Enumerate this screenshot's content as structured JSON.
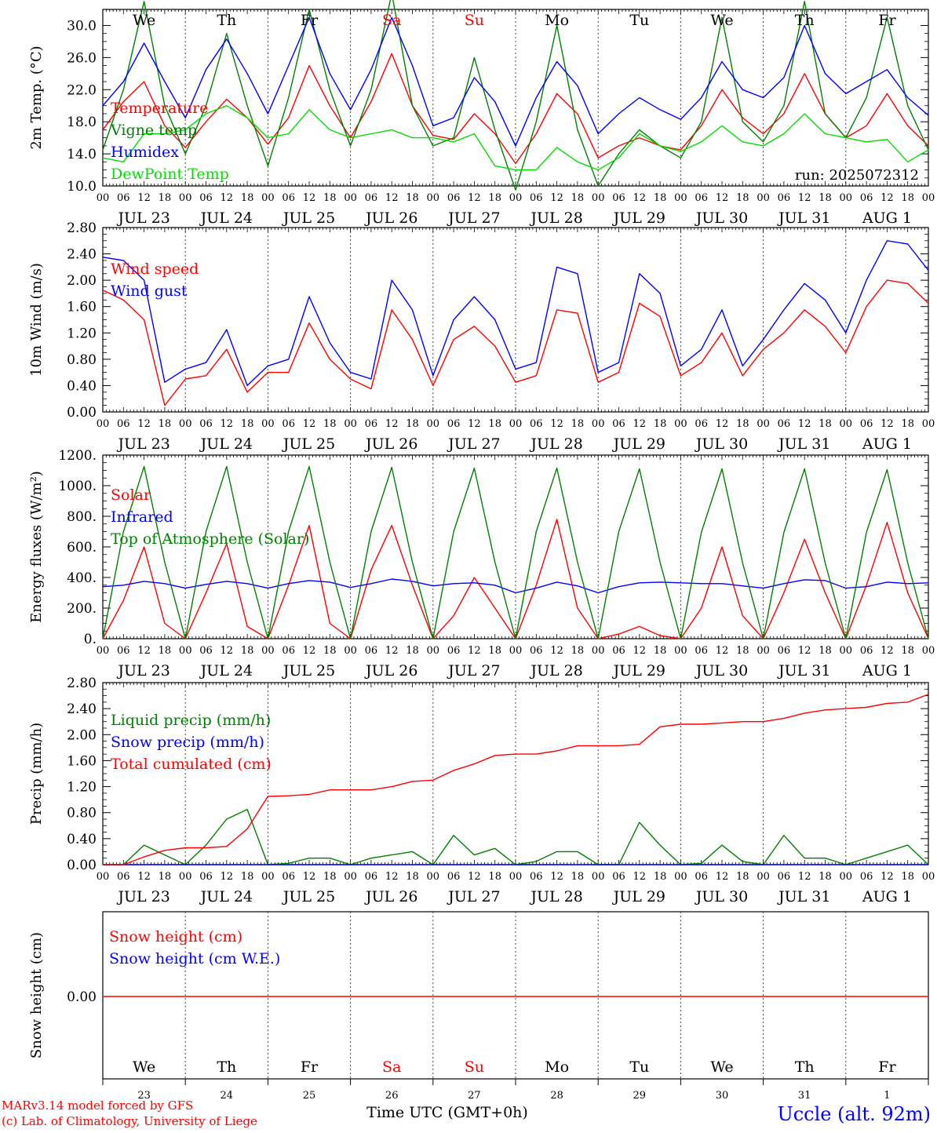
{
  "colors": {
    "temperature": "#ff0000",
    "vigne": "#008000",
    "humidex": "#0000ff",
    "dewpoint": "#00dd00",
    "axis": "#000000",
    "footer_left": "#ff0000",
    "footer_right": "#0000ff"
  },
  "days": {
    "weekday_labels": [
      "We",
      "Th",
      "Fr",
      "Sa",
      "Su",
      "Mo",
      "Tu",
      "We",
      "Th",
      "Fr"
    ],
    "weekend_flags": [
      false,
      false,
      false,
      true,
      true,
      false,
      false,
      false,
      false,
      false
    ],
    "date_labels": [
      "JUL 23",
      "JUL 24",
      "JUL 25",
      "JUL 26",
      "JUL 27",
      "JUL 28",
      "JUL 29",
      "JUL 30",
      "JUL 31",
      "AUG 1"
    ],
    "day_numbers": [
      "23",
      "24",
      "25",
      "26",
      "27",
      "28",
      "29",
      "30",
      "31",
      "1"
    ],
    "hour_labels": [
      "00",
      "06",
      "12",
      "18"
    ],
    "final_hour_label": "00"
  },
  "run_label": "run: 2025072312",
  "footer": {
    "model_line": "MARv3.14 model forced by GFS",
    "lab_line": "(c) Lab. of Climatology, University of Liege",
    "time_axis_label": "Time UTC (GMT+0h)",
    "station": "Uccle (alt. 92m)"
  },
  "chart_data": [
    {
      "id": "temperature",
      "type": "line",
      "ylabel": "2m Temp. (°C)",
      "ylim": [
        10.0,
        32.0
      ],
      "yticks": [
        "10.0",
        "14.0",
        "18.0",
        "22.0",
        "26.0",
        "30.0"
      ],
      "yticks_values": [
        10,
        14,
        18,
        22,
        26,
        30
      ],
      "x_hours": [
        0,
        6,
        12,
        18,
        24,
        30,
        36,
        42,
        48,
        54,
        60,
        66,
        72,
        78,
        84,
        90,
        96,
        102,
        108,
        114,
        120,
        126,
        132,
        138,
        144,
        150,
        156,
        162,
        168,
        174,
        180,
        186,
        192,
        198,
        204,
        210,
        216,
        222,
        228,
        234,
        240
      ],
      "series": [
        {
          "name": "Temperature",
          "color_key": "temperature",
          "values": [
            17.0,
            20.5,
            23.0,
            17.5,
            14.8,
            18.0,
            20.8,
            18.5,
            15.2,
            18.5,
            25.0,
            20.0,
            16.0,
            20.5,
            26.5,
            20.0,
            16.3,
            15.8,
            19.0,
            16.5,
            12.8,
            16.5,
            21.5,
            19.0,
            13.5,
            15.0,
            16.0,
            15.0,
            14.5,
            17.5,
            22.0,
            18.5,
            16.5,
            19.0,
            24.0,
            19.0,
            16.0,
            17.5,
            21.5,
            17.5,
            15.0
          ]
        },
        {
          "name": "Vigne temp",
          "color_key": "vigne",
          "values": [
            14.5,
            22.0,
            33.0,
            20.0,
            14.0,
            20.0,
            29.0,
            20.0,
            12.5,
            21.0,
            32.0,
            22.0,
            15.0,
            22.0,
            34.0,
            20.0,
            15.0,
            16.0,
            26.0,
            17.0,
            9.5,
            18.0,
            30.0,
            17.0,
            10.0,
            14.0,
            17.0,
            15.0,
            13.5,
            18.0,
            31.0,
            18.0,
            15.5,
            20.0,
            33.0,
            19.0,
            16.0,
            21.0,
            31.0,
            20.0,
            14.5
          ]
        },
        {
          "name": "Humidex",
          "color_key": "humidex",
          "values": [
            20.0,
            23.0,
            27.8,
            23.0,
            18.5,
            24.5,
            28.3,
            24.0,
            19.0,
            25.0,
            31.0,
            24.0,
            19.5,
            24.5,
            31.0,
            25.0,
            17.5,
            18.5,
            23.5,
            20.5,
            15.0,
            21.0,
            25.5,
            22.5,
            16.5,
            19.0,
            21.0,
            19.5,
            18.3,
            21.0,
            25.5,
            22.0,
            21.0,
            23.5,
            30.0,
            24.0,
            21.5,
            23.0,
            24.5,
            21.0,
            18.8
          ]
        },
        {
          "name": "DewPoint Temp",
          "color_key": "dewpoint",
          "values": [
            13.5,
            13.0,
            16.5,
            16.5,
            17.0,
            19.0,
            20.0,
            18.5,
            16.0,
            16.5,
            19.5,
            17.0,
            16.0,
            16.5,
            17.0,
            16.0,
            16.0,
            15.5,
            16.5,
            12.5,
            12.0,
            12.0,
            14.8,
            13.0,
            12.0,
            13.5,
            16.5,
            15.0,
            14.3,
            15.5,
            17.5,
            15.5,
            15.0,
            16.5,
            19.0,
            16.5,
            16.0,
            15.5,
            15.8,
            13.0,
            14.5
          ]
        }
      ]
    },
    {
      "id": "wind",
      "type": "line",
      "ylabel": "10m Wind (m/s)",
      "ylim": [
        0.0,
        2.8
      ],
      "yticks": [
        "0.00",
        "0.40",
        "0.80",
        "1.20",
        "1.60",
        "2.00",
        "2.40",
        "2.80"
      ],
      "yticks_values": [
        0,
        0.4,
        0.8,
        1.2,
        1.6,
        2.0,
        2.4,
        2.8
      ],
      "x_hours": [
        0,
        6,
        12,
        18,
        24,
        30,
        36,
        42,
        48,
        54,
        60,
        66,
        72,
        78,
        84,
        90,
        96,
        102,
        108,
        114,
        120,
        126,
        132,
        138,
        144,
        150,
        156,
        162,
        168,
        174,
        180,
        186,
        192,
        198,
        204,
        210,
        216,
        222,
        228,
        234,
        240
      ],
      "series": [
        {
          "name": "Wind speed",
          "color_key": "temperature",
          "values": [
            1.85,
            1.7,
            1.4,
            0.1,
            0.5,
            0.55,
            0.95,
            0.3,
            0.6,
            0.6,
            1.35,
            0.8,
            0.5,
            0.35,
            1.55,
            1.1,
            0.4,
            1.1,
            1.3,
            1.0,
            0.45,
            0.55,
            1.55,
            1.5,
            0.45,
            0.6,
            1.65,
            1.45,
            0.55,
            0.75,
            1.2,
            0.55,
            0.95,
            1.2,
            1.55,
            1.3,
            0.9,
            1.6,
            2.0,
            1.95,
            1.65
          ]
        },
        {
          "name": "Wind gust",
          "color_key": "humidex",
          "values": [
            2.35,
            2.3,
            2.0,
            0.45,
            0.65,
            0.75,
            1.25,
            0.4,
            0.7,
            0.8,
            1.75,
            1.05,
            0.6,
            0.5,
            2.0,
            1.55,
            0.55,
            1.4,
            1.75,
            1.4,
            0.65,
            0.75,
            2.2,
            2.1,
            0.6,
            0.75,
            2.1,
            1.8,
            0.7,
            0.95,
            1.55,
            0.7,
            1.1,
            1.55,
            1.95,
            1.7,
            1.2,
            2.0,
            2.6,
            2.55,
            2.15
          ]
        }
      ]
    },
    {
      "id": "energy",
      "type": "line",
      "ylabel": "Energy fluxes (W/m²)",
      "ylim": [
        0,
        1200
      ],
      "yticks": [
        "0.",
        "200.",
        "400.",
        "600.",
        "800.",
        "1000.",
        "1200."
      ],
      "yticks_values": [
        0,
        200,
        400,
        600,
        800,
        1000,
        1200
      ],
      "x_hours": [
        0,
        6,
        12,
        18,
        24,
        30,
        36,
        42,
        48,
        54,
        60,
        66,
        72,
        78,
        84,
        90,
        96,
        102,
        108,
        114,
        120,
        126,
        132,
        138,
        144,
        150,
        156,
        162,
        168,
        174,
        180,
        186,
        192,
        198,
        204,
        210,
        216,
        222,
        228,
        234,
        240
      ],
      "series": [
        {
          "name": "Solar",
          "color_key": "temperature",
          "values": [
            0,
            250,
            600,
            100,
            0,
            300,
            620,
            80,
            0,
            350,
            740,
            100,
            0,
            450,
            740,
            350,
            0,
            150,
            400,
            200,
            0,
            350,
            780,
            200,
            0,
            30,
            80,
            20,
            0,
            200,
            600,
            150,
            0,
            300,
            650,
            300,
            0,
            350,
            760,
            300,
            0
          ]
        },
        {
          "name": "Infrared",
          "color_key": "humidex",
          "values": [
            340,
            350,
            375,
            360,
            330,
            355,
            375,
            360,
            330,
            360,
            380,
            370,
            335,
            360,
            390,
            375,
            345,
            360,
            365,
            350,
            300,
            330,
            370,
            345,
            300,
            340,
            365,
            370,
            365,
            360,
            360,
            345,
            330,
            360,
            385,
            380,
            330,
            340,
            370,
            360,
            365
          ]
        },
        {
          "name": "Top of Atmosphere (Solar)",
          "color_key": "vigne",
          "values": [
            0,
            700,
            1125,
            500,
            0,
            700,
            1125,
            500,
            0,
            700,
            1125,
            500,
            0,
            700,
            1120,
            500,
            0,
            700,
            1115,
            500,
            0,
            700,
            1115,
            500,
            0,
            700,
            1110,
            500,
            0,
            695,
            1110,
            495,
            0,
            695,
            1110,
            495,
            0,
            695,
            1105,
            495,
            0
          ]
        }
      ]
    },
    {
      "id": "precip",
      "type": "line",
      "ylabel": "Precip (mm/h)",
      "ylim": [
        0.0,
        2.8
      ],
      "yticks": [
        "0.00",
        "0.40",
        "0.80",
        "1.20",
        "1.60",
        "2.00",
        "2.40",
        "2.80"
      ],
      "yticks_values": [
        0,
        0.4,
        0.8,
        1.2,
        1.6,
        2.0,
        2.4,
        2.8
      ],
      "x_hours": [
        0,
        6,
        12,
        18,
        24,
        30,
        36,
        42,
        48,
        54,
        60,
        66,
        72,
        78,
        84,
        90,
        96,
        102,
        108,
        114,
        120,
        126,
        132,
        138,
        144,
        150,
        156,
        162,
        168,
        174,
        180,
        186,
        192,
        198,
        204,
        210,
        216,
        222,
        228,
        234,
        240
      ],
      "series": [
        {
          "name": "Liquid precip (mm/h)",
          "color_key": "vigne",
          "values": [
            0,
            0,
            0.3,
            0.15,
            0,
            0.3,
            0.7,
            0.85,
            0,
            0.02,
            0.1,
            0.1,
            0,
            0.1,
            0.15,
            0.2,
            0,
            0.45,
            0.15,
            0.25,
            0,
            0.05,
            0.2,
            0.2,
            0,
            0,
            0.65,
            0.3,
            0,
            0.02,
            0.3,
            0.05,
            0,
            0.45,
            0.1,
            0.1,
            0,
            0.1,
            0.2,
            0.3,
            0
          ]
        },
        {
          "name": "Snow precip (mm/h)",
          "color_key": "humidex",
          "values": [
            0,
            0,
            0,
            0,
            0,
            0,
            0,
            0,
            0,
            0,
            0,
            0,
            0,
            0,
            0,
            0,
            0,
            0,
            0,
            0,
            0,
            0,
            0,
            0,
            0,
            0,
            0,
            0,
            0,
            0,
            0,
            0,
            0,
            0,
            0,
            0,
            0,
            0,
            0,
            0,
            0
          ]
        },
        {
          "name": "Total cumulated (cm)",
          "color_key": "temperature",
          "values": [
            0,
            0,
            0.12,
            0.22,
            0.26,
            0.26,
            0.28,
            0.55,
            1.05,
            1.06,
            1.08,
            1.15,
            1.15,
            1.15,
            1.2,
            1.28,
            1.3,
            1.45,
            1.55,
            1.68,
            1.7,
            1.7,
            1.75,
            1.83,
            1.83,
            1.83,
            1.85,
            2.12,
            2.16,
            2.16,
            2.18,
            2.2,
            2.2,
            2.25,
            2.33,
            2.38,
            2.4,
            2.42,
            2.48,
            2.5,
            2.62
          ]
        }
      ]
    },
    {
      "id": "snow",
      "type": "line",
      "ylabel": "Snow height (cm)",
      "yticks": [
        "0.00"
      ],
      "yticks_values": [
        0
      ],
      "x_hours": [
        0,
        240
      ],
      "series": [
        {
          "name": "Snow height (cm)",
          "color_key": "temperature",
          "values": [
            0,
            0
          ]
        },
        {
          "name": "Snow height (cm W.E.)",
          "color_key": "humidex",
          "values": [
            0,
            0
          ]
        }
      ]
    }
  ]
}
